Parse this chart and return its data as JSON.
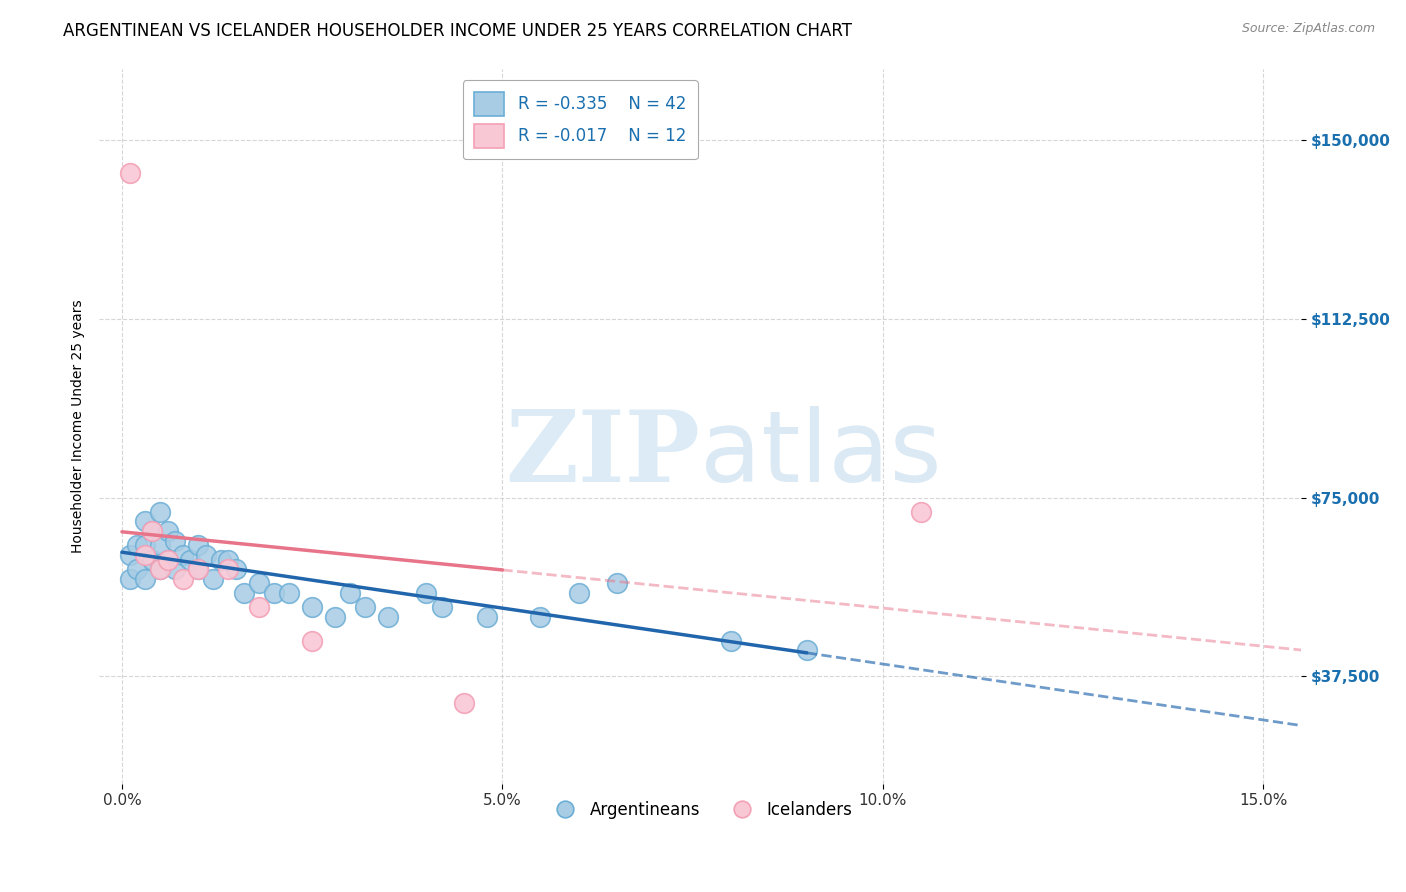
{
  "title": "ARGENTINEAN VS ICELANDER HOUSEHOLDER INCOME UNDER 25 YEARS CORRELATION CHART",
  "source": "Source: ZipAtlas.com",
  "ylabel": "Householder Income Under 25 years",
  "ytick_labels": [
    "$37,500",
    "$75,000",
    "$112,500",
    "$150,000"
  ],
  "ytick_vals": [
    37500,
    75000,
    112500,
    150000
  ],
  "xtick_labels": [
    "0.0%",
    "5.0%",
    "10.0%",
    "15.0%"
  ],
  "xtick_vals": [
    0.0,
    0.05,
    0.1,
    0.15
  ],
  "xlim": [
    -0.003,
    0.155
  ],
  "ylim": [
    15000,
    165000
  ],
  "argentinean_R": "-0.335",
  "argentinean_N": "42",
  "icelander_R": "-0.017",
  "icelander_N": "12",
  "blue_color": "#a8cce4",
  "blue_edge_color": "#6baed6",
  "blue_line_color": "#2166ac",
  "pink_color": "#f9c8d5",
  "pink_edge_color": "#f4a0b5",
  "pink_line_color": "#e8748a",
  "background_color": "#ffffff",
  "grid_color": "#cccccc",
  "argentinean_x": [
    0.001,
    0.001,
    0.002,
    0.002,
    0.003,
    0.003,
    0.003,
    0.004,
    0.004,
    0.005,
    0.005,
    0.005,
    0.006,
    0.006,
    0.007,
    0.007,
    0.008,
    0.009,
    0.01,
    0.01,
    0.011,
    0.012,
    0.013,
    0.014,
    0.015,
    0.016,
    0.018,
    0.02,
    0.022,
    0.025,
    0.028,
    0.03,
    0.032,
    0.035,
    0.04,
    0.042,
    0.048,
    0.055,
    0.06,
    0.065,
    0.08,
    0.09
  ],
  "argentinean_y": [
    63000,
    58000,
    65000,
    60000,
    70000,
    65000,
    58000,
    68000,
    62000,
    72000,
    65000,
    60000,
    68000,
    62000,
    66000,
    60000,
    63000,
    62000,
    65000,
    60000,
    63000,
    58000,
    62000,
    62000,
    60000,
    55000,
    57000,
    55000,
    55000,
    52000,
    50000,
    55000,
    52000,
    50000,
    55000,
    52000,
    50000,
    50000,
    55000,
    57000,
    45000,
    43000
  ],
  "icelander_x": [
    0.001,
    0.003,
    0.004,
    0.005,
    0.006,
    0.008,
    0.01,
    0.014,
    0.018,
    0.025,
    0.045,
    0.105
  ],
  "icelander_y": [
    143000,
    63000,
    68000,
    60000,
    62000,
    58000,
    60000,
    60000,
    52000,
    45000,
    32000,
    72000
  ],
  "watermark_zip": "ZIP",
  "watermark_atlas": "atlas",
  "title_fontsize": 12,
  "axis_label_fontsize": 10,
  "tick_fontsize": 11,
  "legend_fontsize": 12,
  "source_fontsize": 9
}
